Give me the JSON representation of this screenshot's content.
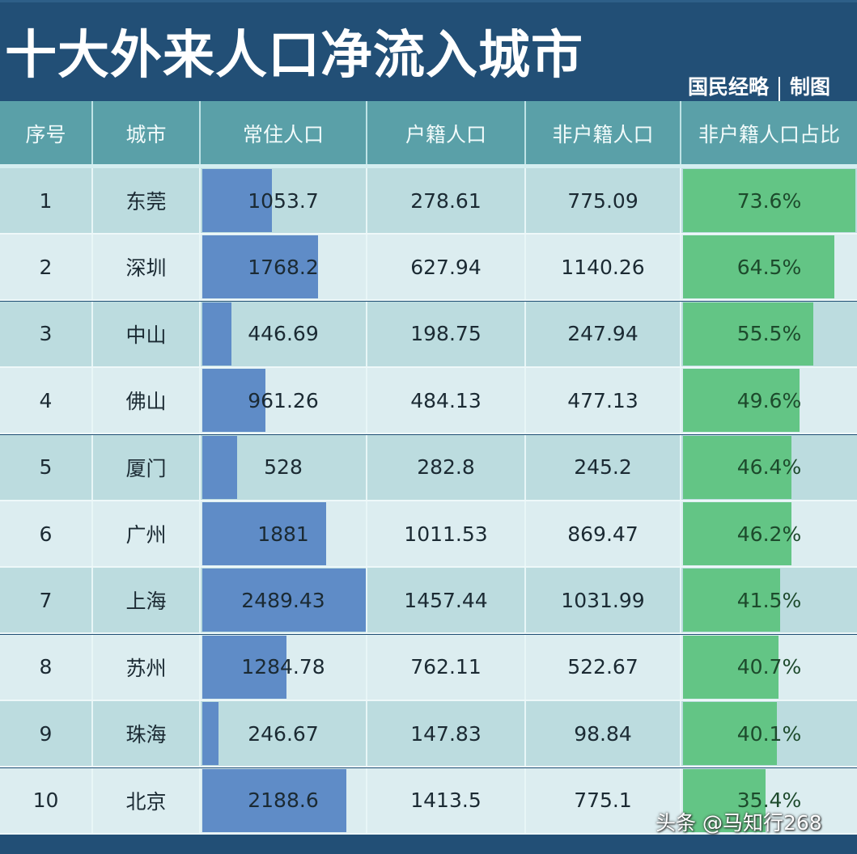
{
  "header": {
    "title": "十大外来人口净流入城市",
    "credit_source": "国民经略",
    "credit_label": "制图"
  },
  "table": {
    "columns": [
      "序号",
      "城市",
      "常住人口",
      "户籍人口",
      "非户籍人口",
      "非户籍人口占比"
    ],
    "rows": [
      {
        "rank": "1",
        "city": "东莞",
        "resident": "1053.7",
        "registered": "278.61",
        "non_registered": "775.09",
        "share": "73.6%"
      },
      {
        "rank": "2",
        "city": "深圳",
        "resident": "1768.2",
        "registered": "627.94",
        "non_registered": "1140.26",
        "share": "64.5%"
      },
      {
        "rank": "3",
        "city": "中山",
        "resident": "446.69",
        "registered": "198.75",
        "non_registered": "247.94",
        "share": "55.5%"
      },
      {
        "rank": "4",
        "city": "佛山",
        "resident": "961.26",
        "registered": "484.13",
        "non_registered": "477.13",
        "share": "49.6%"
      },
      {
        "rank": "5",
        "city": "厦门",
        "resident": "528",
        "registered": "282.8",
        "non_registered": "245.2",
        "share": "46.4%"
      },
      {
        "rank": "6",
        "city": "广州",
        "resident": "1881",
        "registered": "1011.53",
        "non_registered": "869.47",
        "share": "46.2%"
      },
      {
        "rank": "7",
        "city": "上海",
        "resident": "2489.43",
        "registered": "1457.44",
        "non_registered": "1031.99",
        "share": "41.5%"
      },
      {
        "rank": "8",
        "city": "苏州",
        "resident": "1284.78",
        "registered": "762.11",
        "non_registered": "522.67",
        "share": "40.7%"
      },
      {
        "rank": "9",
        "city": "珠海",
        "resident": "246.67",
        "registered": "147.83",
        "non_registered": "98.84",
        "share": "40.1%"
      },
      {
        "rank": "10",
        "city": "北京",
        "resident": "2188.6",
        "registered": "1413.5",
        "non_registered": "775.1",
        "share": "35.4%"
      }
    ]
  },
  "watermark": "头条 @马知行268",
  "colors": {
    "title_bg": "#224f76",
    "header_bg": "#5aa0a8",
    "row_odd": "#bcdcdf",
    "row_even": "#dcedf0",
    "bar_blue": "#5f8cc7",
    "bar_green": "#63c585"
  },
  "chart_data": {
    "type": "table",
    "title": "十大外来人口净流入城市",
    "columns": [
      "序号",
      "城市",
      "常住人口",
      "户籍人口",
      "非户籍人口",
      "非户籍人口占比"
    ],
    "categories": [
      "东莞",
      "深圳",
      "中山",
      "佛山",
      "厦门",
      "广州",
      "上海",
      "苏州",
      "珠海",
      "北京"
    ],
    "series": [
      {
        "name": "常住人口",
        "values": [
          1053.7,
          1768.2,
          446.69,
          961.26,
          528,
          1881,
          2489.43,
          1284.78,
          246.67,
          2188.6
        ],
        "data_bars": true
      },
      {
        "name": "户籍人口",
        "values": [
          278.61,
          627.94,
          198.75,
          484.13,
          282.8,
          1011.53,
          1457.44,
          762.11,
          147.83,
          1413.5
        ]
      },
      {
        "name": "非户籍人口",
        "values": [
          775.09,
          1140.26,
          247.94,
          477.13,
          245.2,
          869.47,
          1031.99,
          522.67,
          98.84,
          775.1
        ]
      },
      {
        "name": "非户籍人口占比",
        "values": [
          73.6,
          64.5,
          55.5,
          49.6,
          46.4,
          46.2,
          41.5,
          40.7,
          40.1,
          35.4
        ],
        "unit": "%",
        "data_bars": true
      }
    ]
  }
}
